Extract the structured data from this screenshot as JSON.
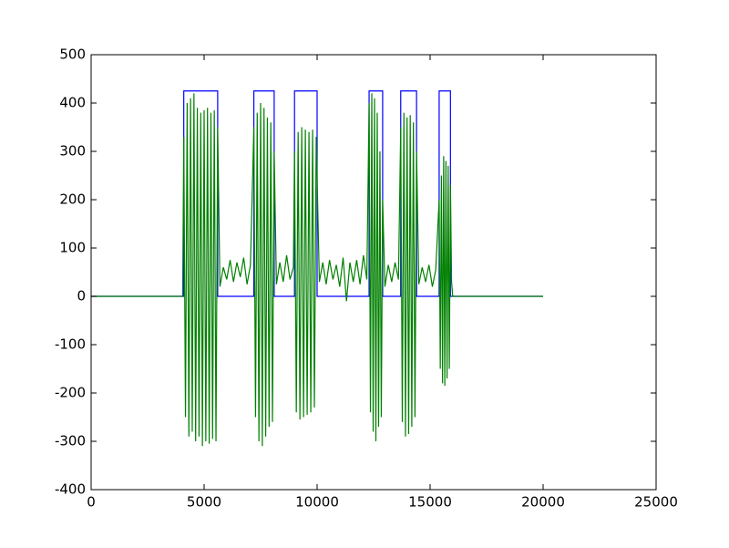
{
  "chart_data": {
    "type": "line",
    "xlim": [
      0,
      25000
    ],
    "xticks": [
      0,
      5000,
      10000,
      15000,
      20000,
      25000
    ],
    "ylim": [
      -400,
      500
    ],
    "yticks": [
      -400,
      -300,
      -200,
      -100,
      0,
      100,
      200,
      300,
      400,
      500
    ],
    "series": [
      {
        "color": "#0000ff",
        "x": [
          0,
          4100,
          4100,
          5600,
          5600,
          7200,
          7200,
          8100,
          8100,
          9000,
          9000,
          10000,
          10000,
          12300,
          12300,
          12900,
          12900,
          13700,
          13700,
          14400,
          14400,
          15400,
          15400,
          15900,
          15900,
          20000
        ],
        "values": [
          0,
          0,
          425,
          425,
          0,
          0,
          425,
          425,
          0,
          0,
          425,
          425,
          0,
          0,
          425,
          425,
          0,
          0,
          425,
          425,
          0,
          0,
          425,
          425,
          0,
          0
        ]
      },
      {
        "color": "#008000",
        "x": [
          0,
          4050,
          4100,
          4175,
          4250,
          4325,
          4400,
          4475,
          4550,
          4625,
          4700,
          4775,
          4850,
          4925,
          5000,
          5075,
          5150,
          5225,
          5300,
          5375,
          5450,
          5525,
          5600,
          5700,
          5850,
          6000,
          6150,
          6300,
          6450,
          6600,
          6750,
          6900,
          7050,
          7200,
          7275,
          7350,
          7425,
          7500,
          7575,
          7650,
          7725,
          7800,
          7875,
          7950,
          8025,
          8100,
          8200,
          8350,
          8500,
          8650,
          8800,
          8950,
          9000,
          9080,
          9160,
          9240,
          9320,
          9400,
          9480,
          9560,
          9640,
          9720,
          9800,
          9880,
          9960,
          10100,
          10250,
          10400,
          10550,
          10700,
          10850,
          11000,
          11150,
          11300,
          11450,
          11600,
          11750,
          11900,
          12050,
          12200,
          12300,
          12360,
          12420,
          12480,
          12540,
          12600,
          12660,
          12720,
          12780,
          12840,
          12900,
          13000,
          13150,
          13300,
          13450,
          13600,
          13700,
          13770,
          13840,
          13910,
          13980,
          14050,
          14120,
          14190,
          14260,
          14330,
          14400,
          14500,
          14650,
          14800,
          14950,
          15100,
          15250,
          15400,
          15450,
          15500,
          15550,
          15600,
          15650,
          15700,
          15750,
          15800,
          15850,
          15900,
          15950,
          16000,
          20000
        ],
        "values": [
          0,
          0,
          330,
          -250,
          400,
          -290,
          410,
          -280,
          420,
          -300,
          390,
          -290,
          380,
          -310,
          385,
          -300,
          390,
          -305,
          380,
          -295,
          385,
          -300,
          350,
          20,
          60,
          35,
          75,
          30,
          70,
          40,
          80,
          25,
          65,
          350,
          -250,
          380,
          -300,
          400,
          -310,
          390,
          -290,
          370,
          -270,
          360,
          -260,
          300,
          25,
          70,
          30,
          85,
          35,
          60,
          300,
          -240,
          340,
          -255,
          350,
          -250,
          345,
          -245,
          340,
          -240,
          345,
          -230,
          330,
          30,
          70,
          25,
          75,
          35,
          65,
          20,
          80,
          -10,
          70,
          30,
          75,
          25,
          85,
          35,
          400,
          -240,
          420,
          -280,
          410,
          -300,
          380,
          -270,
          300,
          -250,
          200,
          20,
          65,
          30,
          70,
          35,
          350,
          -260,
          380,
          -290,
          370,
          -285,
          375,
          -270,
          360,
          -250,
          300,
          25,
          60,
          30,
          65,
          20,
          55,
          200,
          -150,
          250,
          -180,
          290,
          -185,
          280,
          -170,
          270,
          -150,
          230,
          30,
          0,
          0
        ]
      }
    ]
  }
}
